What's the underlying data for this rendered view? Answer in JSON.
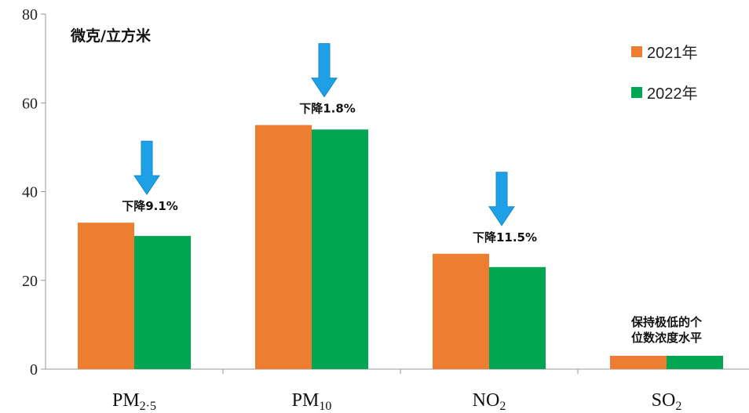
{
  "chart_data": {
    "type": "bar",
    "unit_label": "微克/立方米",
    "categories": [
      {
        "base": "PM",
        "sub": "2·5"
      },
      {
        "base": "PM",
        "sub": "10"
      },
      {
        "base": "NO",
        "sub": "2"
      },
      {
        "base": "SO",
        "sub": "2"
      }
    ],
    "series": [
      {
        "name": "2021年",
        "color": "#ED7D31",
        "values": [
          33,
          55,
          26,
          3
        ]
      },
      {
        "name": "2022年",
        "color": "#00A651",
        "values": [
          30,
          54,
          23,
          3
        ]
      }
    ],
    "ylim": [
      0,
      80
    ],
    "yticks": [
      0,
      20,
      40,
      60,
      80
    ],
    "grid": false,
    "legend_position": "top-right",
    "annotations": [
      {
        "category_index": 0,
        "text": "下降9.1%",
        "arrow": true
      },
      {
        "category_index": 1,
        "text": "下降1.8%",
        "arrow": true
      },
      {
        "category_index": 2,
        "text": "下降11.5%",
        "arrow": true
      },
      {
        "category_index": 3,
        "text_lines": [
          "保持极低的个",
          "位数浓度水平"
        ],
        "arrow": false
      }
    ],
    "arrow_color": "#1EA0E6"
  }
}
